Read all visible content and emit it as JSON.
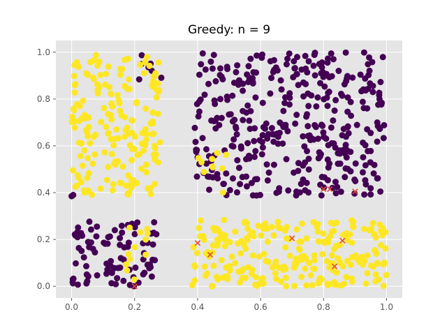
{
  "chart_data": {
    "type": "scatter",
    "title": "Greedy: n = 9",
    "xlabel": "",
    "ylabel": "",
    "xlim": [
      -0.05,
      1.05
    ],
    "ylim": [
      -0.05,
      1.05
    ],
    "xticks": [
      0.0,
      0.2,
      0.4,
      0.6,
      0.8,
      1.0
    ],
    "yticks": [
      0.0,
      0.2,
      0.4,
      0.6,
      0.8,
      1.0
    ],
    "xtick_labels": [
      "0.0",
      "0.2",
      "0.4",
      "0.6",
      "0.8",
      "1.0"
    ],
    "ytick_labels": [
      "0.0",
      "0.2",
      "0.4",
      "0.6",
      "0.8",
      "1.0"
    ],
    "grid": true,
    "style": "ggplot",
    "colors": {
      "background": "#e5e5e5",
      "grid": "#ffffff",
      "class_dark": "#440154",
      "class_light": "#fde725",
      "selected": "#e24a33"
    },
    "series": [
      {
        "label": "dark",
        "color": "#440154",
        "regions": [
          {
            "x": [
              0.39,
              0.995
            ],
            "y": [
              0.385,
              1.0
            ],
            "n": 380
          },
          {
            "x": [
              0.0,
              0.27
            ],
            "y": [
              0.0,
              0.285
            ],
            "n": 90
          },
          {
            "x": [
              0.205,
              0.29
            ],
            "y": [
              0.88,
              0.99
            ],
            "n": 7
          }
        ],
        "extra_points": [
          [
            0.005,
            0.39
          ],
          [
            0.0,
            0.385
          ]
        ]
      },
      {
        "label": "light",
        "color": "#fde725",
        "regions": [
          {
            "x": [
              0.0,
              0.285
            ],
            "y": [
              0.39,
              0.99
            ],
            "n": 190
          },
          {
            "x": [
              0.38,
              1.0
            ],
            "y": [
              0.0,
              0.285
            ],
            "n": 240
          },
          {
            "x": [
              0.39,
              0.5
            ],
            "y": [
              0.39,
              0.6
            ],
            "n": 10
          },
          {
            "x": [
              0.16,
              0.25
            ],
            "y": [
              0.0,
              0.285
            ],
            "n": 12
          }
        ]
      }
    ],
    "selected_points": {
      "label": "selected",
      "marker": "x",
      "color": "#e24a33",
      "points": [
        [
          0.2,
          0.0
        ],
        [
          0.4,
          0.185
        ],
        [
          0.44,
          0.135
        ],
        [
          0.7,
          0.205
        ],
        [
          0.8,
          0.415
        ],
        [
          0.82,
          0.415
        ],
        [
          0.835,
          0.085
        ],
        [
          0.86,
          0.195
        ],
        [
          0.9,
          0.405
        ]
      ]
    }
  }
}
